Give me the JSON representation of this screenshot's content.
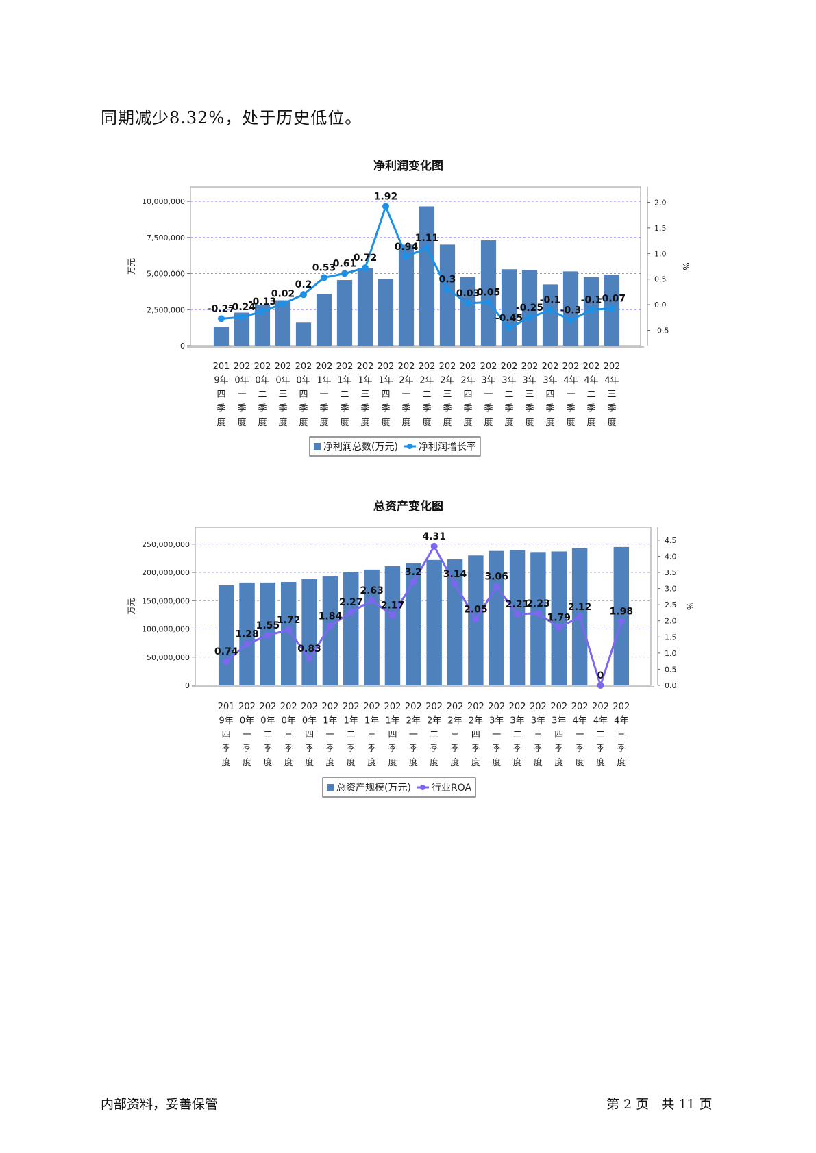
{
  "body_text": "同期减少8.32%，处于历史低位。",
  "footer": {
    "left": "内部资料，妥善保管",
    "right": "第 2 页   共 11 页"
  },
  "colors": {
    "bar": "#4f81bd",
    "profit_line": "#1e90e6",
    "roa_line": "#7b68ee",
    "grid": "#8080ff"
  },
  "chart_data": [
    {
      "type": "bar",
      "title": "净利润变化图",
      "ylabel": "万元",
      "y2label": "%",
      "ylim": [
        0,
        11000000
      ],
      "y2lim": [
        -0.8,
        2.3
      ],
      "y_ticks": [
        "0",
        "2,500,000",
        "5,000,000",
        "7,500,000",
        "10,000,000"
      ],
      "y_tick_values": [
        0,
        2500000,
        5000000,
        7500000,
        10000000
      ],
      "y2_ticks": [
        "-0.5",
        "0.0",
        "0.5",
        "1.0",
        "1.5",
        "2.0"
      ],
      "y2_tick_values": [
        -0.5,
        0.0,
        0.5,
        1.0,
        1.5,
        2.0
      ],
      "categories": [
        "2019年四季度",
        "2020年一季度",
        "2020年二季度",
        "2020年三季度",
        "2020年四季度",
        "2021年一季度",
        "2021年二季度",
        "2021年三季度",
        "2021年四季度",
        "2022年一季度",
        "2022年二季度",
        "2022年三季度",
        "2022年四季度",
        "2023年一季度",
        "2023年二季度",
        "2023年三季度",
        "2023年四季度",
        "2024年一季度",
        "2024年二季度",
        "2024年三季度"
      ],
      "category_lines": [
        [
          "201",
          "9年",
          "四",
          "季",
          "度"
        ],
        [
          "202",
          "0年",
          "一",
          "季",
          "度"
        ],
        [
          "202",
          "0年",
          "二",
          "季",
          "度"
        ],
        [
          "202",
          "0年",
          "三",
          "季",
          "度"
        ],
        [
          "202",
          "0年",
          "四",
          "季",
          "度"
        ],
        [
          "202",
          "1年",
          "一",
          "季",
          "度"
        ],
        [
          "202",
          "1年",
          "二",
          "季",
          "度"
        ],
        [
          "202",
          "1年",
          "三",
          "季",
          "度"
        ],
        [
          "202",
          "1年",
          "四",
          "季",
          "度"
        ],
        [
          "202",
          "2年",
          "一",
          "季",
          "度"
        ],
        [
          "202",
          "2年",
          "二",
          "季",
          "度"
        ],
        [
          "202",
          "2年",
          "三",
          "季",
          "度"
        ],
        [
          "202",
          "2年",
          "四",
          "季",
          "度"
        ],
        [
          "202",
          "3年",
          "一",
          "季",
          "度"
        ],
        [
          "202",
          "3年",
          "二",
          "季",
          "度"
        ],
        [
          "202",
          "3年",
          "三",
          "季",
          "度"
        ],
        [
          "202",
          "3年",
          "四",
          "季",
          "度"
        ],
        [
          "202",
          "4年",
          "一",
          "季",
          "度"
        ],
        [
          "202",
          "4年",
          "二",
          "季",
          "度"
        ],
        [
          "202",
          "4年",
          "三",
          "季",
          "度"
        ]
      ],
      "series": [
        {
          "name": "净利润总数(万元)",
          "kind": "bar",
          "values": [
            1300000,
            2300000,
            2850000,
            3150000,
            1600000,
            3600000,
            4550000,
            5400000,
            4600000,
            7000000,
            9650000,
            7000000,
            4750000,
            7300000,
            5300000,
            5250000,
            4250000,
            5150000,
            4750000,
            4900000
          ]
        },
        {
          "name": "净利润增长率",
          "kind": "line",
          "values": [
            -0.27,
            -0.24,
            -0.13,
            0.02,
            0.2,
            0.53,
            0.61,
            0.72,
            1.92,
            0.94,
            1.11,
            0.3,
            0.03,
            0.05,
            -0.45,
            -0.25,
            -0.1,
            -0.3,
            -0.1,
            -0.07
          ],
          "labels": [
            "-0.27",
            "-0.24",
            "-0.13",
            "0.02",
            "0.2",
            "0.53",
            "0.61",
            "0.72",
            "1.92",
            "0.94",
            "1.11",
            "0.3",
            "0.03",
            "0.05",
            "-0.45",
            "-0.25",
            "-0.1",
            "-0.3",
            "-0.1",
            "-0.07"
          ]
        }
      ],
      "legend": [
        "净利润总数(万元)",
        "净利润增长率"
      ],
      "legend_position": "bottom",
      "grid": true
    },
    {
      "type": "bar",
      "title": "总资产变化图",
      "ylabel": "万元",
      "y2label": "%",
      "ylim": [
        0,
        280000000
      ],
      "y2lim": [
        0,
        4.9
      ],
      "y_ticks": [
        "0",
        "50,000,000",
        "100,000,000",
        "150,000,000",
        "200,000,000",
        "250,000,000"
      ],
      "y_tick_values": [
        0,
        50000000,
        100000000,
        150000000,
        200000000,
        250000000
      ],
      "y2_ticks": [
        "0.0",
        "0.5",
        "1.0",
        "1.5",
        "2.0",
        "2.5",
        "3.0",
        "3.5",
        "4.0",
        "4.5"
      ],
      "y2_tick_values": [
        0,
        0.5,
        1.0,
        1.5,
        2.0,
        2.5,
        3.0,
        3.5,
        4.0,
        4.5
      ],
      "categories": [
        "2019年四季度",
        "2020年一季度",
        "2020年二季度",
        "2020年三季度",
        "2020年四季度",
        "2021年一季度",
        "2021年二季度",
        "2021年三季度",
        "2021年四季度",
        "2022年一季度",
        "2022年二季度",
        "2022年三季度",
        "2022年四季度",
        "2023年一季度",
        "2023年二季度",
        "2023年三季度",
        "2023年四季度",
        "2024年一季度",
        "2024年二季度",
        "2024年三季度"
      ],
      "category_lines": [
        [
          "201",
          "9年",
          "四",
          "季",
          "度"
        ],
        [
          "202",
          "0年",
          "一",
          "季",
          "度"
        ],
        [
          "202",
          "0年",
          "二",
          "季",
          "度"
        ],
        [
          "202",
          "0年",
          "三",
          "季",
          "度"
        ],
        [
          "202",
          "0年",
          "四",
          "季",
          "度"
        ],
        [
          "202",
          "1年",
          "一",
          "季",
          "度"
        ],
        [
          "202",
          "1年",
          "二",
          "季",
          "度"
        ],
        [
          "202",
          "1年",
          "三",
          "季",
          "度"
        ],
        [
          "202",
          "1年",
          "四",
          "季",
          "度"
        ],
        [
          "202",
          "2年",
          "一",
          "季",
          "度"
        ],
        [
          "202",
          "2年",
          "二",
          "季",
          "度"
        ],
        [
          "202",
          "2年",
          "三",
          "季",
          "度"
        ],
        [
          "202",
          "2年",
          "四",
          "季",
          "度"
        ],
        [
          "202",
          "3年",
          "一",
          "季",
          "度"
        ],
        [
          "202",
          "3年",
          "二",
          "季",
          "度"
        ],
        [
          "202",
          "3年",
          "三",
          "季",
          "度"
        ],
        [
          "202",
          "3年",
          "四",
          "季",
          "度"
        ],
        [
          "202",
          "4年",
          "一",
          "季",
          "度"
        ],
        [
          "202",
          "4年",
          "二",
          "季",
          "度"
        ],
        [
          "202",
          "4年",
          "三",
          "季",
          "度"
        ]
      ],
      "series": [
        {
          "name": "总资产规模(万元)",
          "kind": "bar",
          "values": [
            177000000,
            182000000,
            182000000,
            183000000,
            188000000,
            193000000,
            200000000,
            205000000,
            211000000,
            216000000,
            222000000,
            223000000,
            230000000,
            238000000,
            239000000,
            236000000,
            237000000,
            243000000,
            0,
            245000000
          ]
        },
        {
          "name": "行业ROA",
          "kind": "line",
          "values": [
            0.74,
            1.28,
            1.55,
            1.72,
            0.83,
            1.84,
            2.27,
            2.63,
            2.17,
            3.2,
            4.31,
            3.14,
            2.05,
            3.06,
            2.21,
            2.23,
            1.79,
            2.12,
            0,
            1.98
          ],
          "labels": [
            "0.74",
            "1.28",
            "1.55",
            "1.72",
            "0.83",
            "1.84",
            "2.27",
            "2.63",
            "2.17",
            "3.2",
            "4.31",
            "3.14",
            "2.05",
            "3.06",
            "2.21",
            "2.23",
            "1.79",
            "2.12",
            "0",
            "1.98"
          ]
        }
      ],
      "legend": [
        "总资产规模(万元)",
        "行业ROA"
      ],
      "legend_position": "bottom",
      "grid": true
    }
  ]
}
